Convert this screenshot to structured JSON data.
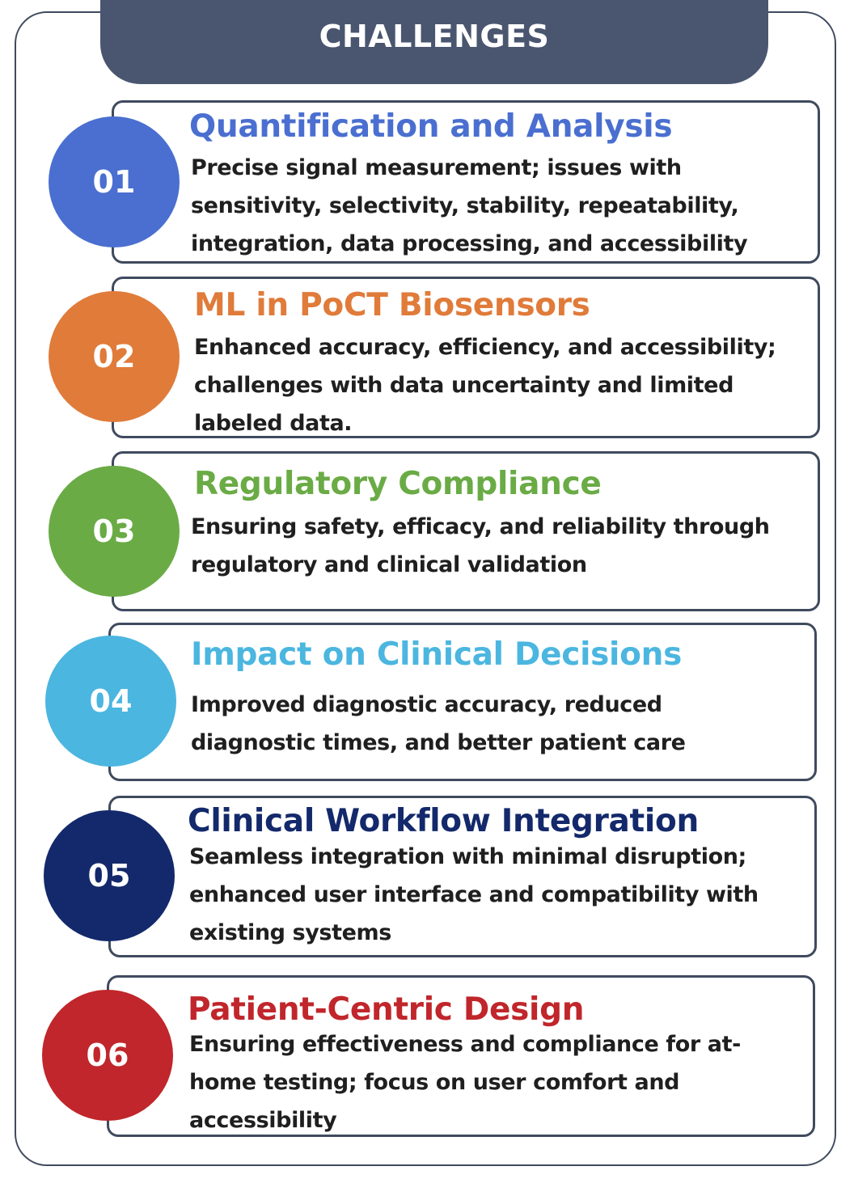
{
  "header": {
    "title": "CHALLENGES"
  },
  "items": [
    {
      "number": "01",
      "title": "Quantification and Analysis",
      "description": "Precise signal measurement; issues with sensitivity, selectivity, stability, repeatability, integration, data processing, and accessibility",
      "color": "#4a6fd0"
    },
    {
      "number": "02",
      "title": "ML in PoCT Biosensors",
      "description": "Enhanced accuracy, efficiency, and accessibility; challenges with data uncertainty and limited labeled data.",
      "color": "#e07b3a"
    },
    {
      "number": "03",
      "title": "Regulatory Compliance",
      "description": "Ensuring safety, efficacy, and reliability through regulatory and clinical validation",
      "color": "#6aab45"
    },
    {
      "number": "04",
      "title": "Impact on Clinical Decisions",
      "description": "Improved diagnostic accuracy, reduced diagnostic times, and better patient care",
      "color": "#4bb6e0"
    },
    {
      "number": "05",
      "title": "Clinical Workflow Integration",
      "description": "Seamless integration with minimal disruption; enhanced user interface and compatibility with existing systems",
      "color": "#13296b"
    },
    {
      "number": "06",
      "title": "Patient-Centric Design",
      "description": "Ensuring effectiveness and compliance for at-home testing; focus on user comfort and accessibility",
      "color": "#c0262b"
    }
  ]
}
